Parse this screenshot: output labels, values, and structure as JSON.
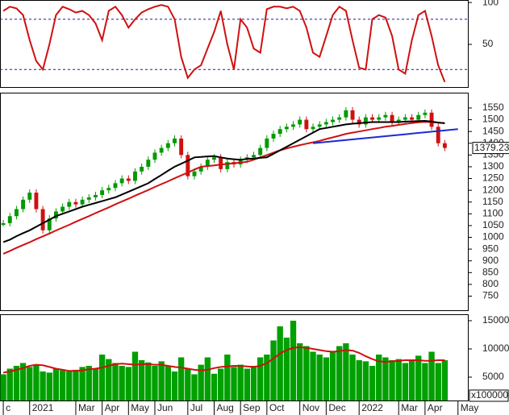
{
  "chart_data": [
    {
      "type": "line",
      "ylim": [
        -1,
        103
      ],
      "yticks": [
        50,
        100
      ],
      "levels": [
        20,
        80
      ],
      "level_color": "#1a1aa0",
      "series": [
        {
          "color": "#d01010",
          "values": [
            90,
            95,
            93,
            85,
            55,
            30,
            20,
            50,
            85,
            95,
            92,
            88,
            90,
            85,
            75,
            55,
            90,
            95,
            85,
            70,
            80,
            88,
            92,
            95,
            97,
            95,
            80,
            35,
            10,
            20,
            25,
            45,
            65,
            90,
            50,
            20,
            80,
            70,
            45,
            40,
            92,
            95,
            95,
            93,
            95,
            90,
            70,
            40,
            35,
            60,
            85,
            95,
            90,
            55,
            22,
            20,
            80,
            85,
            82,
            60,
            20,
            15,
            55,
            85,
            90,
            60,
            25,
            5
          ]
        }
      ]
    },
    {
      "type": "candlestick",
      "ylim": [
        690,
        1615
      ],
      "yticks": [
        750,
        800,
        850,
        900,
        950,
        1000,
        1050,
        1100,
        1150,
        1200,
        1250,
        1300,
        1350,
        1400,
        1450,
        1500,
        1550
      ],
      "up_color": "#009a00",
      "down_color": "#d01010",
      "last_price_label": "1379.230",
      "close": [
        1060,
        1090,
        1120,
        1160,
        1190,
        1120,
        1030,
        1080,
        1110,
        1130,
        1150,
        1140,
        1160,
        1170,
        1180,
        1200,
        1210,
        1230,
        1250,
        1240,
        1280,
        1300,
        1330,
        1360,
        1380,
        1400,
        1420,
        1350,
        1260,
        1280,
        1300,
        1330,
        1340,
        1290,
        1320,
        1310,
        1330,
        1340,
        1350,
        1380,
        1420,
        1440,
        1460,
        1470,
        1480,
        1500,
        1460,
        1470,
        1480,
        1490,
        1500,
        1510,
        1540,
        1500,
        1480,
        1510,
        1500,
        1510,
        1520,
        1490,
        1500,
        1510,
        1500,
        1520,
        1530,
        1470,
        1400,
        1380
      ],
      "series": [
        {
          "color": "#d01010",
          "values": [
            930,
            942,
            955,
            967,
            979,
            992,
            1004,
            1016,
            1029,
            1041,
            1053,
            1066,
            1078,
            1090,
            1103,
            1115,
            1127,
            1140,
            1152,
            1164,
            1177,
            1189,
            1201,
            1214,
            1226,
            1238,
            1251,
            1263,
            1275,
            1288,
            1300,
            1303,
            1306,
            1309,
            1312,
            1315,
            1318,
            1321,
            1330,
            1340,
            1350,
            1360,
            1370,
            1378,
            1385,
            1392,
            1398,
            1404,
            1410,
            1418,
            1425,
            1432,
            1440,
            1445,
            1450,
            1455,
            1460,
            1465,
            1470,
            1474,
            1478,
            1482,
            1486,
            1489,
            1491,
            1490,
            1488,
            1485
          ]
        },
        {
          "color": "#000000",
          "values": [
            980,
            990,
            1005,
            1018,
            1030,
            1045,
            1060,
            1075,
            1090,
            1100,
            1110,
            1120,
            1130,
            1138,
            1146,
            1154,
            1162,
            1170,
            1182,
            1194,
            1206,
            1218,
            1230,
            1248,
            1265,
            1283,
            1300,
            1313,
            1326,
            1340,
            1342,
            1344,
            1345,
            1340,
            1335,
            1332,
            1330,
            1333,
            1335,
            1338,
            1340,
            1355,
            1370,
            1385,
            1400,
            1415,
            1430,
            1445,
            1460,
            1465,
            1470,
            1475,
            1480,
            1483,
            1485,
            1488,
            1490,
            1490,
            1490,
            1490,
            1490,
            1492,
            1493,
            1494,
            1495,
            1492,
            1488,
            1485
          ]
        },
        {
          "color": "#1a2ad0",
          "x": [
            47,
            69
          ],
          "values": [
            1400,
            1460
          ]
        }
      ]
    },
    {
      "type": "bar",
      "ylim": [
        857,
        16140
      ],
      "yticks": [
        5000,
        10000,
        15000
      ],
      "color": "#00a000",
      "unit_label": "x100000",
      "xlim": [
        -0.5,
        70.5
      ],
      "xticks": [
        {
          "value": 0,
          "label": "c"
        },
        {
          "value": 4,
          "label": "2021"
        },
        {
          "value": 11,
          "label": "Mar"
        },
        {
          "value": 15,
          "label": "Apr"
        },
        {
          "value": 19,
          "label": "May"
        },
        {
          "value": 23,
          "label": "Jun"
        },
        {
          "value": 28,
          "label": "Jul"
        },
        {
          "value": 32,
          "label": "Aug"
        },
        {
          "value": 36,
          "label": "Sep"
        },
        {
          "value": 40,
          "label": "Oct"
        },
        {
          "value": 45,
          "label": "Nov"
        },
        {
          "value": 49,
          "label": "Dec"
        },
        {
          "value": 54,
          "label": "2022"
        },
        {
          "value": 60,
          "label": "Mar"
        },
        {
          "value": 64,
          "label": "Apr"
        },
        {
          "value": 69,
          "label": "May"
        }
      ],
      "values": [
        5500,
        6500,
        7000,
        7500,
        6800,
        7200,
        6000,
        5800,
        6500,
        6200,
        6000,
        6300,
        6800,
        7000,
        6500,
        9000,
        8200,
        7500,
        7000,
        6800,
        9500,
        8000,
        7600,
        7000,
        7800,
        7000,
        6000,
        8500,
        6500,
        5500,
        7200,
        8500,
        5600,
        6500,
        9000,
        6800,
        7200,
        6500,
        7000,
        8500,
        9000,
        11500,
        14000,
        12000,
        15000,
        11000,
        10500,
        9500,
        9000,
        8500,
        9500,
        10500,
        11000,
        9000,
        8000,
        7800,
        7000,
        9000,
        8500,
        8000,
        8200,
        7500,
        8000,
        8800,
        7500,
        9500,
        7500,
        8000
      ],
      "series": [
        {
          "color": "#d01010",
          "values": [
            5800,
            6000,
            6300,
            6600,
            7000,
            7200,
            7100,
            6800,
            6500,
            6300,
            6100,
            6100,
            6200,
            6400,
            6500,
            6700,
            7000,
            7300,
            7400,
            7300,
            7200,
            7300,
            7300,
            7200,
            7200,
            7000,
            6800,
            6700,
            6500,
            6300,
            6200,
            6300,
            6600,
            6800,
            6900,
            7000,
            7000,
            6900,
            6800,
            7000,
            7500,
            8300,
            9200,
            9800,
            10200,
            10300,
            10200,
            10000,
            9800,
            9600,
            9500,
            9600,
            9800,
            9700,
            9300,
            8700,
            8200,
            7800,
            7700,
            7800,
            7900,
            8000,
            8000,
            8000,
            7900,
            7900,
            8000,
            8000
          ]
        }
      ]
    }
  ]
}
